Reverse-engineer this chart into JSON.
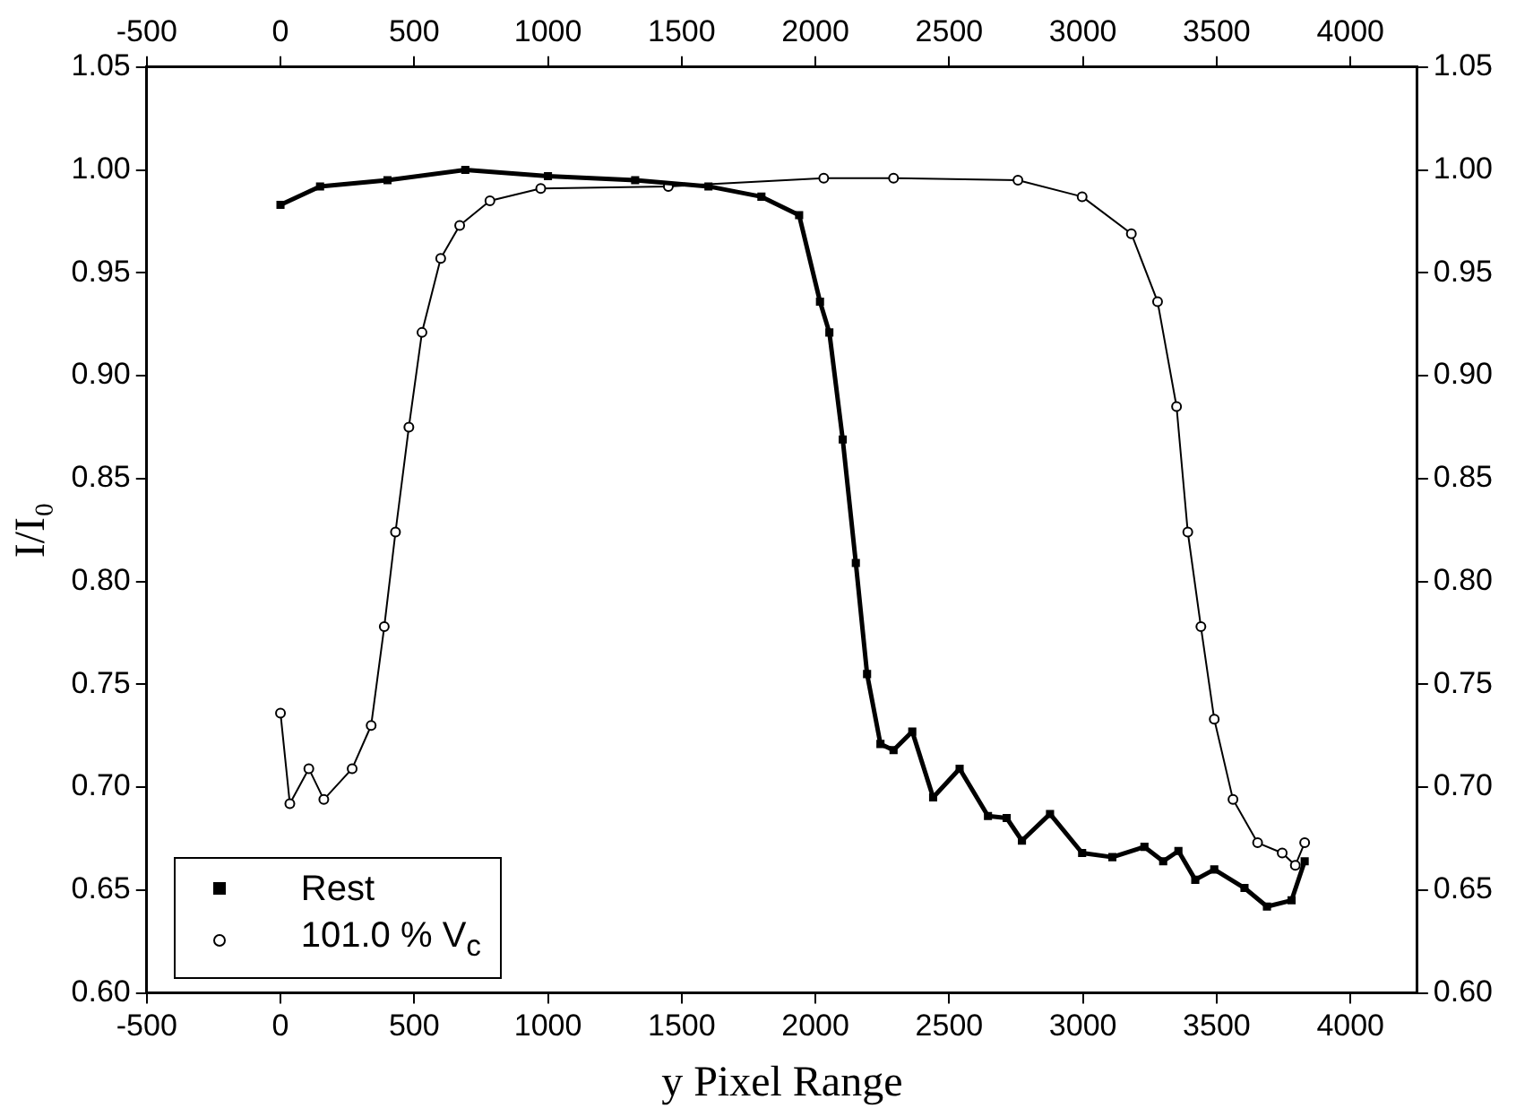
{
  "chart_data": {
    "type": "line",
    "xlabel": "y Pixel Range",
    "ylabel": "I/I₀",
    "xlim": [
      -500,
      4250
    ],
    "xticks": [
      -500,
      0,
      500,
      1000,
      1500,
      2000,
      2500,
      3000,
      3500,
      4000
    ],
    "x2lim": [
      -500,
      4250
    ],
    "x2ticks": [
      -500,
      0,
      500,
      1000,
      1500,
      2000,
      2500,
      3000,
      3500,
      4000
    ],
    "ylim": [
      0.6,
      1.05
    ],
    "yticks": [
      {
        "value": 0.6,
        "label": "0.60"
      },
      0.65,
      {
        "value": 0.7,
        "label": "0.70"
      },
      0.75,
      {
        "value": 0.8,
        "label": "0.80"
      },
      0.85,
      {
        "value": 0.9,
        "label": "0.90"
      },
      0.95,
      {
        "value": 1.0,
        "label": "1.00"
      },
      1.05
    ],
    "y2lim": [
      0.6,
      1.05
    ],
    "y2ticks": [
      {
        "value": 0.6,
        "label": "0.60"
      },
      0.65,
      {
        "value": 0.7,
        "label": "0.70"
      },
      0.75,
      {
        "value": 0.8,
        "label": "0.80"
      },
      0.85,
      {
        "value": 0.9,
        "label": "0.90"
      },
      0.95,
      {
        "value": 1.0,
        "label": "1.00"
      },
      1.05
    ],
    "grid": false,
    "legend": "bottom left",
    "series": [
      {
        "name": "Rest",
        "color": "#000000",
        "marker": "square",
        "x": [
          0,
          148,
          400,
          691,
          1000,
          1326,
          1600,
          1798,
          1939,
          2017,
          2052,
          2102,
          2151,
          2193,
          2243,
          2292,
          2362,
          2440,
          2539,
          2645,
          2715,
          2772,
          2877,
          2997,
          3110,
          3230,
          3300,
          3357,
          3420,
          3491,
          3604,
          3688,
          3780,
          3829
        ],
        "values": [
          0.983,
          0.992,
          0.995,
          1.0,
          0.997,
          0.995,
          0.992,
          0.987,
          0.978,
          0.936,
          0.921,
          0.869,
          0.809,
          0.755,
          0.721,
          0.718,
          0.727,
          0.695,
          0.709,
          0.686,
          0.685,
          0.674,
          0.687,
          0.668,
          0.666,
          0.671,
          0.664,
          0.669,
          0.655,
          0.66,
          0.651,
          0.642,
          0.645,
          0.664
        ]
      },
      {
        "name": "101.0 % V$_{c}$",
        "color": "#000000",
        "marker": "circle",
        "x": [
          0,
          35,
          106,
          162,
          268,
          339,
          388,
          430,
          480,
          529,
          599,
          670,
          783,
          973,
          1450,
          2031,
          2292,
          2757,
          2997,
          3181,
          3279,
          3350,
          3392,
          3441,
          3491,
          3561,
          3653,
          3745,
          3794,
          3829
        ],
        "values": [
          0.736,
          0.692,
          0.709,
          0.694,
          0.709,
          0.73,
          0.778,
          0.824,
          0.875,
          0.921,
          0.957,
          0.973,
          0.985,
          0.991,
          0.992,
          0.996,
          0.996,
          0.995,
          0.987,
          0.969,
          0.936,
          0.885,
          0.824,
          0.778,
          0.733,
          0.694,
          0.673,
          0.668,
          0.662,
          0.673
        ]
      }
    ]
  }
}
